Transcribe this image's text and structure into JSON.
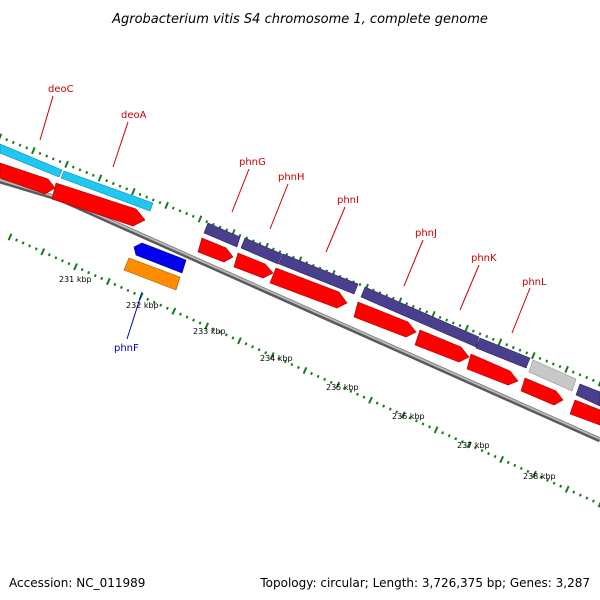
{
  "title": "Agrobacterium vitis S4 chromosome 1, complete genome",
  "accession": "Accession: NC_011989",
  "summary": "Topology: circular; Length: 3,726,375 bp; Genes: 3,287",
  "colors": {
    "backbone": "#808080",
    "cds": "#ff0000",
    "gene_light_blue": "#1ec8f0",
    "gene_purple": "#4a3f8c",
    "gene_blue": "#0000ee",
    "gene_orange": "#ff8c00",
    "gene_grey": "#c8c8c8",
    "label_red": "#cc0000",
    "label_blue": "#0000cc",
    "ticks": "#1a7a1a"
  },
  "gene_labels": [
    {
      "id": "deoC",
      "text": "deoC",
      "color": "#cc0000"
    },
    {
      "id": "deoA",
      "text": "deoA",
      "color": "#cc0000"
    },
    {
      "id": "phnG",
      "text": "phnG",
      "color": "#cc0000"
    },
    {
      "id": "phnH",
      "text": "phnH",
      "color": "#cc0000"
    },
    {
      "id": "phnI",
      "text": "phnI",
      "color": "#cc0000"
    },
    {
      "id": "phnJ",
      "text": "phnJ",
      "color": "#cc0000"
    },
    {
      "id": "phnK",
      "text": "phnK",
      "color": "#cc0000"
    },
    {
      "id": "phnL",
      "text": "phnL",
      "color": "#cc0000"
    },
    {
      "id": "phnF",
      "text": "phnF",
      "color": "#0000cc"
    }
  ],
  "scale_labels": [
    "231 kbp",
    "232 kbp",
    "233 kbp",
    "234 kbp",
    "235 kbp",
    "236 kbp",
    "237 kbp",
    "238 kbp"
  ]
}
